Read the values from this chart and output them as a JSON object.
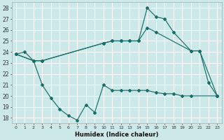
{
  "xlabel": "Humidex (Indice chaleur)",
  "bg_color": "#cde8e8",
  "grid_color": "#b0d4d4",
  "line_color": "#1a6e6a",
  "xlim": [
    -0.5,
    23.5
  ],
  "ylim": [
    17.5,
    28.5
  ],
  "xticks": [
    0,
    1,
    2,
    3,
    4,
    5,
    6,
    7,
    8,
    9,
    10,
    11,
    12,
    13,
    14,
    15,
    16,
    17,
    18,
    19,
    20,
    21,
    22,
    23
  ],
  "yticks": [
    18,
    19,
    20,
    21,
    22,
    23,
    24,
    25,
    26,
    27,
    28
  ],
  "series1_x": [
    0,
    1,
    2,
    3,
    10,
    11,
    12,
    13,
    14,
    15,
    16,
    17,
    18,
    20,
    21,
    22,
    23
  ],
  "series1_y": [
    23.8,
    24.0,
    23.2,
    23.2,
    24.8,
    25.0,
    25.0,
    25.0,
    25.0,
    28.0,
    27.2,
    27.0,
    25.8,
    24.1,
    24.1,
    21.2,
    20.0
  ],
  "series2_x": [
    0,
    2,
    3,
    10,
    11,
    12,
    13,
    14,
    15,
    16,
    20,
    21,
    23
  ],
  "series2_y": [
    23.8,
    23.2,
    23.2,
    24.8,
    25.0,
    25.0,
    25.0,
    25.0,
    26.2,
    25.8,
    24.1,
    24.1,
    20.0
  ],
  "series3_x": [
    0,
    2,
    3,
    4,
    5,
    6,
    7,
    8,
    9,
    10,
    11,
    12,
    13,
    14,
    15,
    16,
    17,
    18,
    19,
    20,
    23
  ],
  "series3_y": [
    23.8,
    23.2,
    21.0,
    19.8,
    18.8,
    18.2,
    17.8,
    19.2,
    18.5,
    21.0,
    20.5,
    20.5,
    20.5,
    20.5,
    20.5,
    20.3,
    20.2,
    20.2,
    20.0,
    20.0,
    20.0
  ]
}
